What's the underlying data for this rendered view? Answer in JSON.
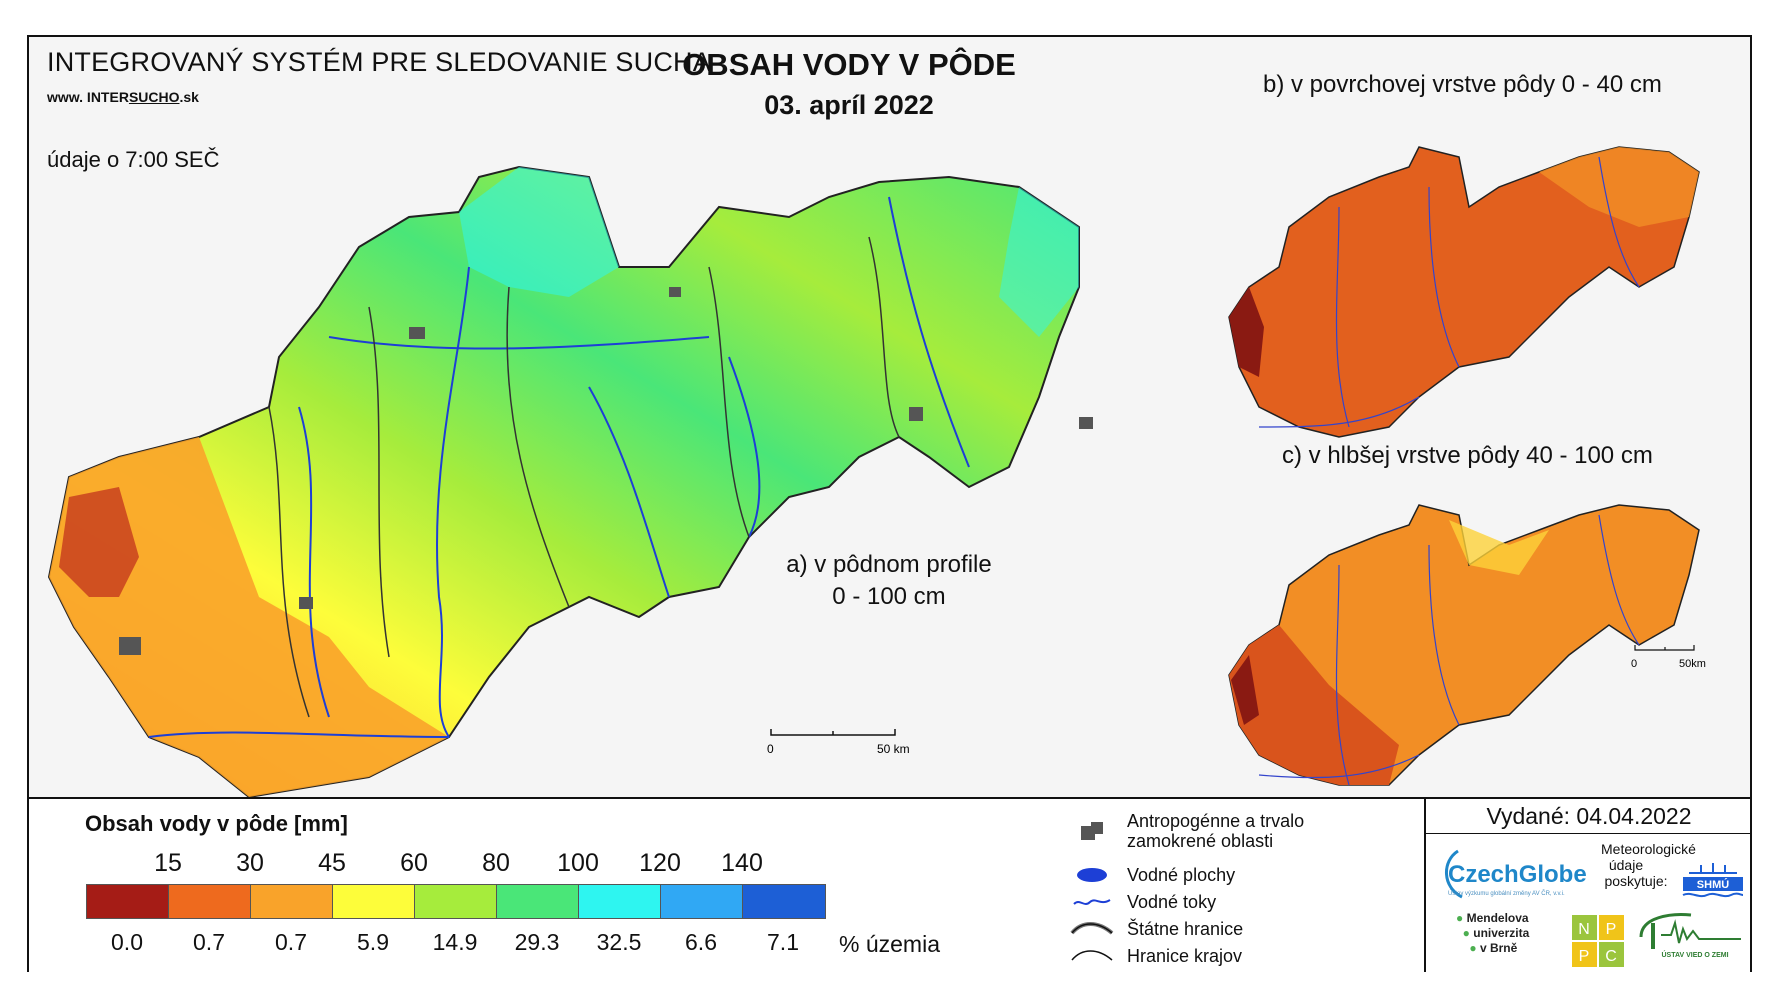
{
  "header": {
    "system_title": "INTEGROVANÝ SYSTÉM PRE SLEDOVANIE SUCHA",
    "website_prefix": "www. INTER",
    "website_underlined": "SUCHO",
    "website_suffix": ".sk",
    "time_note": "údaje o 7:00 SEČ",
    "main_title": "OBSAH VODY V PÔDE",
    "date": "03. apríl 2022"
  },
  "maps": {
    "a_label": "a) v pôdnom profile",
    "a_sublabel": "0 - 100 cm",
    "b_label": "b) v povrchovej vrstve pôdy 0 - 40 cm",
    "c_label": "c) v hlbšej vrstve pôdy 40 - 100 cm",
    "scale_main_start": "0",
    "scale_main_end": "50 km",
    "scale_small_start": "0",
    "scale_small_end": "50km"
  },
  "legend": {
    "title": "Obsah vody v pôde  [mm]",
    "thresholds": [
      "15",
      "30",
      "45",
      "60",
      "80",
      "100",
      "120",
      "140"
    ],
    "classes": [
      {
        "color": "#a51c16",
        "percent": "0.0"
      },
      {
        "color": "#ee6a1e",
        "percent": "0.7"
      },
      {
        "color": "#f9a32a",
        "percent": "0.7"
      },
      {
        "color": "#fdfd3a",
        "percent": "5.9"
      },
      {
        "color": "#a6ec3c",
        "percent": "14.9"
      },
      {
        "color": "#4ae678",
        "percent": "29.3"
      },
      {
        "color": "#2ef5f0",
        "percent": "32.5"
      },
      {
        "color": "#30a8f4",
        "percent": "6.6"
      },
      {
        "color": "#1d5fd6",
        "percent": "7.1"
      }
    ],
    "percent_unit": "% územia"
  },
  "symbols": {
    "anthropogenic": "Antropogénne a trvalo zamokrené oblasti",
    "water_bodies": "Vodné plochy",
    "streams": "Vodné toky",
    "state_border": "Štátne hranice",
    "regional_border": "Hranice krajov"
  },
  "footer": {
    "issued": "Vydané: 04.04.2022",
    "czechglobe": "CzechGlobe",
    "czechglobe_sub": "Ústav výzkumu globální změny AV ČR, v.v.i.",
    "meteo_line1": "Meteorologické",
    "meteo_line2": "údaje",
    "meteo_line3": "poskytuje:",
    "shmu": "SHMÚ",
    "mendel_1": "Mendelova",
    "mendel_2": "univerzita",
    "mendel_3": "v Brně",
    "nppc_letters": [
      "N",
      "P",
      "P",
      "C"
    ],
    "uvz": "ÚSTAV VIED O ZEMI"
  }
}
